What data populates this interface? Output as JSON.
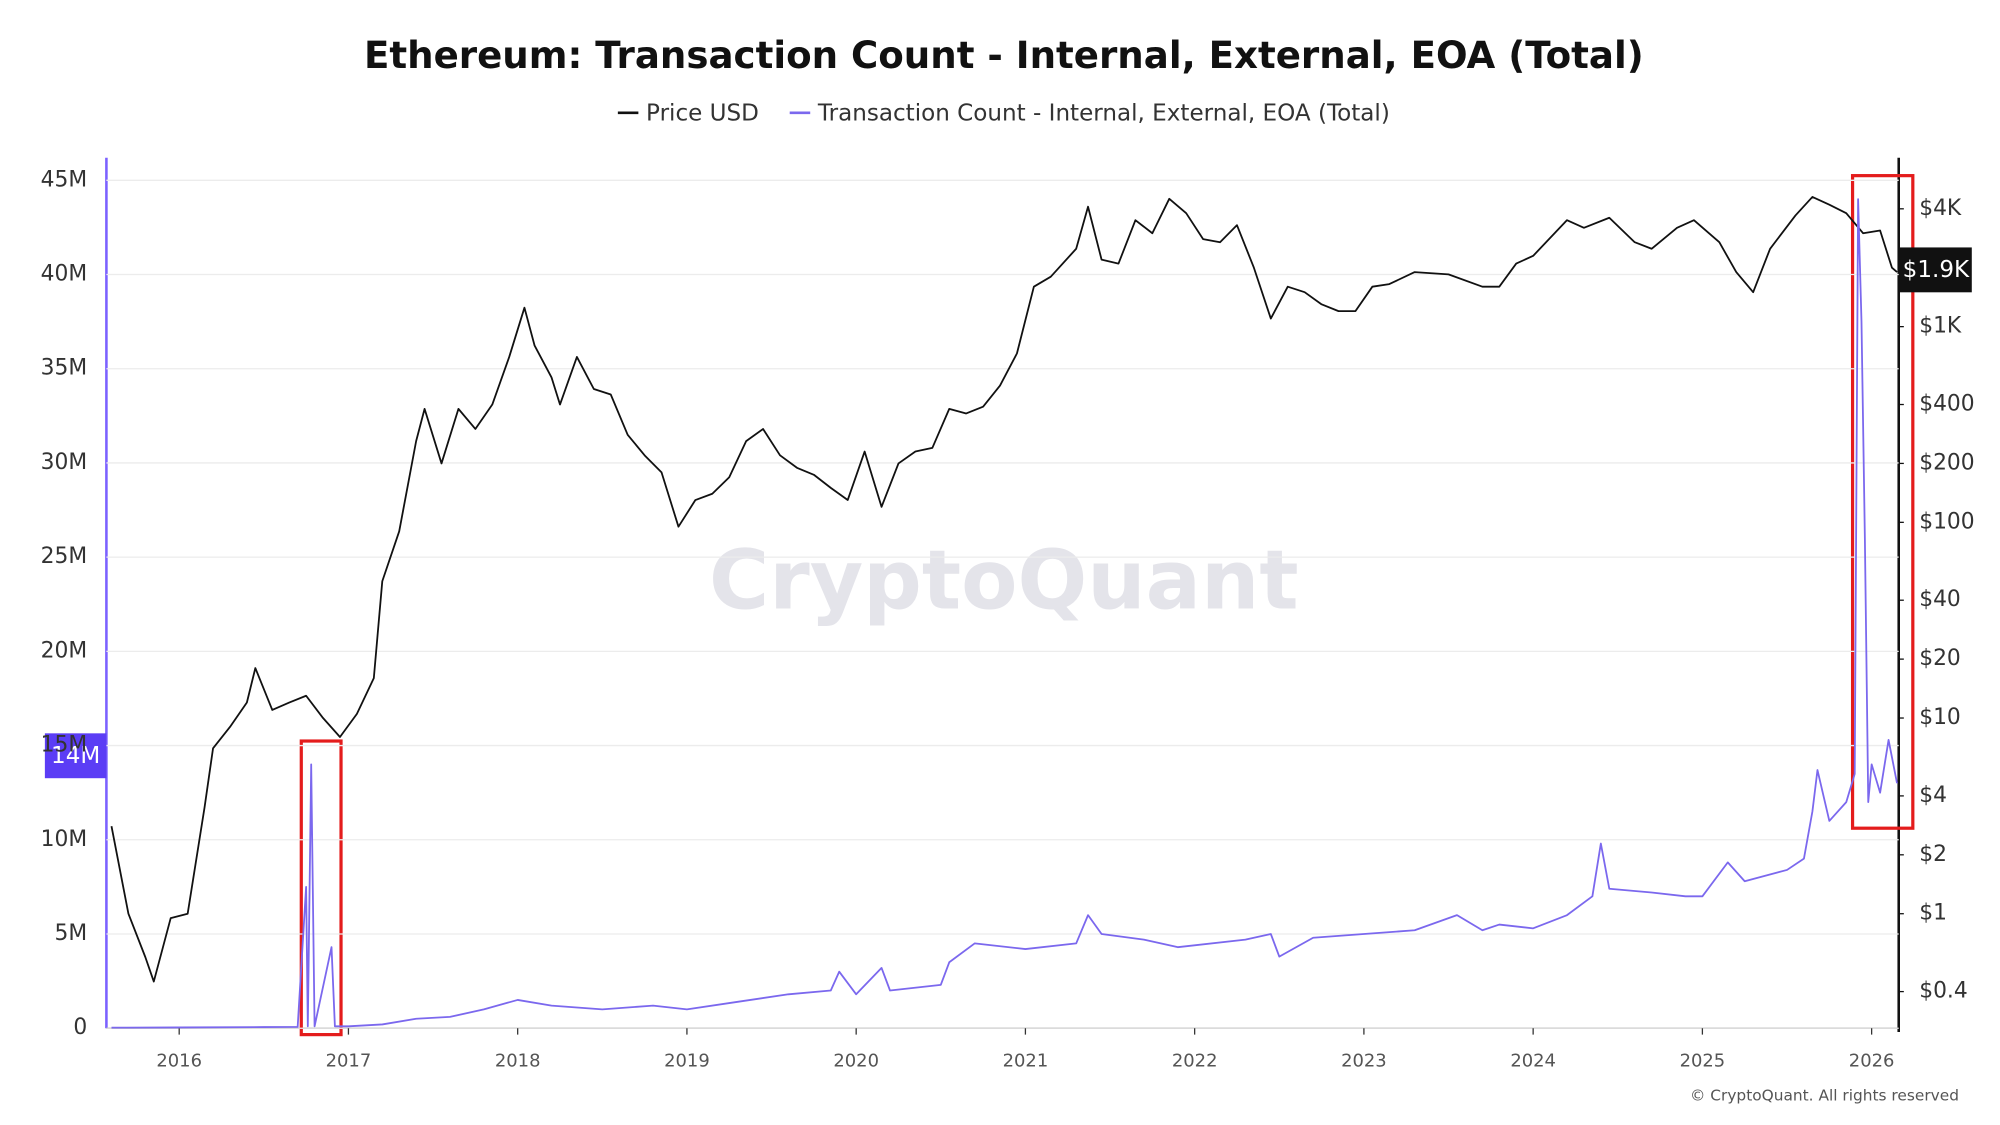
{
  "chart_data": {
    "type": "line",
    "title": "Ethereum: Transaction Count - Internal, External, EOA (Total)",
    "watermark": "CryptoQuant",
    "credit": "© CryptoQuant. All rights reserved",
    "annotations": [
      "14M",
      "$1.9K"
    ],
    "xlim": [
      2015.57,
      2026.16
    ],
    "xticks": [
      2016,
      2017,
      2018,
      2019,
      2020,
      2021,
      2022,
      2023,
      2024,
      2025,
      2026
    ],
    "ylim": [
      0,
      46200000
    ],
    "yticks": [
      0,
      {
        "value": 5000000,
        "label": "5M"
      },
      {
        "value": 10000000,
        "label": "10M"
      },
      {
        "value": 15000000,
        "label": "15M"
      },
      {
        "value": 20000000,
        "label": "20M"
      },
      {
        "value": 25000000,
        "label": "25M"
      },
      {
        "value": 30000000,
        "label": "30M"
      },
      {
        "value": 35000000,
        "label": "35M"
      },
      {
        "value": 40000000,
        "label": "40M"
      },
      {
        "value": 45000000,
        "label": "45M"
      }
    ],
    "y2scale": "log",
    "y2lim": [
      0.26,
      7300
    ],
    "y2ticks": [
      {
        "value": 0.4,
        "label": "$0.4"
      },
      {
        "value": 1,
        "label": "$1"
      },
      {
        "value": 2,
        "label": "$2"
      },
      {
        "value": 4,
        "label": "$4"
      },
      {
        "value": 10,
        "label": "$10"
      },
      {
        "value": 20,
        "label": "$20"
      },
      {
        "value": 40,
        "label": "$40"
      },
      {
        "value": 100,
        "label": "$100"
      },
      {
        "value": 200,
        "label": "$200"
      },
      {
        "value": 400,
        "label": "$400"
      },
      {
        "value": 1000,
        "label": "$1K"
      },
      {
        "value": 4000,
        "label": "$4K"
      }
    ],
    "grid": true,
    "series": [
      {
        "name": "Price USD",
        "color": "#111111",
        "axis": "y2",
        "x": [
          2015.6,
          2015.7,
          2015.8,
          2015.85,
          2015.95,
          2016.05,
          2016.15,
          2016.2,
          2016.3,
          2016.4,
          2016.45,
          2016.55,
          2016.65,
          2016.75,
          2016.85,
          2016.95,
          2017.05,
          2017.15,
          2017.2,
          2017.3,
          2017.4,
          2017.45,
          2017.55,
          2017.65,
          2017.75,
          2017.85,
          2017.95,
          2018.04,
          2018.1,
          2018.2,
          2018.25,
          2018.35,
          2018.45,
          2018.55,
          2018.65,
          2018.75,
          2018.85,
          2018.95,
          2019.05,
          2019.15,
          2019.25,
          2019.35,
          2019.45,
          2019.55,
          2019.65,
          2019.75,
          2019.85,
          2019.95,
          2020.05,
          2020.15,
          2020.25,
          2020.35,
          2020.45,
          2020.55,
          2020.65,
          2020.75,
          2020.85,
          2020.95,
          2021.05,
          2021.15,
          2021.3,
          2021.37,
          2021.45,
          2021.55,
          2021.65,
          2021.75,
          2021.85,
          2021.95,
          2022.05,
          2022.15,
          2022.25,
          2022.35,
          2022.45,
          2022.55,
          2022.65,
          2022.75,
          2022.85,
          2022.95,
          2023.05,
          2023.15,
          2023.3,
          2023.5,
          2023.7,
          2023.8,
          2023.9,
          2024.0,
          2024.2,
          2024.3,
          2024.45,
          2024.6,
          2024.7,
          2024.85,
          2024.95,
          2025.1,
          2025.2,
          2025.3,
          2025.4,
          2025.55,
          2025.65,
          2025.75,
          2025.85,
          2025.95,
          2026.05,
          2026.12,
          2026.15
        ],
        "values": [
          2.8,
          1.0,
          0.6,
          0.45,
          0.95,
          1.0,
          3.5,
          7,
          9,
          12,
          18,
          11,
          12,
          13,
          10,
          8,
          10.5,
          16,
          50,
          90,
          260,
          380,
          200,
          380,
          300,
          400,
          700,
          1250,
          800,
          550,
          400,
          700,
          480,
          450,
          280,
          220,
          180,
          95,
          130,
          140,
          170,
          260,
          300,
          220,
          190,
          175,
          150,
          130,
          230,
          120,
          200,
          230,
          240,
          380,
          360,
          390,
          500,
          730,
          1600,
          1800,
          2500,
          4100,
          2200,
          2100,
          3500,
          3000,
          4500,
          3800,
          2800,
          2700,
          3300,
          2000,
          1100,
          1600,
          1500,
          1300,
          1200,
          1200,
          1600,
          1650,
          1900,
          1850,
          1600,
          1600,
          2100,
          2300,
          3500,
          3200,
          3600,
          2700,
          2500,
          3200,
          3500,
          2700,
          1900,
          1500,
          2500,
          3700,
          4600,
          4200,
          3800,
          3000,
          3100,
          2000,
          1900
        ]
      },
      {
        "name": "Transaction Count - Internal, External, EOA (Total)",
        "color": "#7b68ee",
        "axis": "y",
        "x": [
          2015.6,
          2016.0,
          2016.5,
          2016.7,
          2016.75,
          2016.76,
          2016.78,
          2016.8,
          2016.9,
          2016.92,
          2017.0,
          2017.2,
          2017.4,
          2017.6,
          2017.8,
          2018.0,
          2018.2,
          2018.5,
          2018.8,
          2019.0,
          2019.3,
          2019.6,
          2019.85,
          2019.9,
          2020.0,
          2020.15,
          2020.2,
          2020.5,
          2020.55,
          2020.7,
          2021.0,
          2021.3,
          2021.37,
          2021.45,
          2021.7,
          2021.9,
          2022.3,
          2022.45,
          2022.5,
          2022.7,
          2023.0,
          2023.3,
          2023.55,
          2023.7,
          2023.8,
          2024.0,
          2024.2,
          2024.35,
          2024.4,
          2024.45,
          2024.7,
          2024.9,
          2025.0,
          2025.15,
          2025.25,
          2025.5,
          2025.6,
          2025.65,
          2025.68,
          2025.75,
          2025.85,
          2025.9,
          2025.92,
          2025.94,
          2025.96,
          2025.98,
          2026.0,
          2026.05,
          2026.1,
          2026.15
        ],
        "values": [
          30000,
          40000,
          60000,
          70000,
          7500000,
          100000,
          14000000,
          100000,
          4300000,
          100000,
          100000,
          200000,
          500000,
          600000,
          1000000,
          1500000,
          1200000,
          1000000,
          1200000,
          1000000,
          1400000,
          1800000,
          2000000,
          3000000,
          1800000,
          3200000,
          2000000,
          2300000,
          3500000,
          4500000,
          4200000,
          4500000,
          6000000,
          5000000,
          4700000,
          4300000,
          4700000,
          5000000,
          3800000,
          4800000,
          5000000,
          5200000,
          6000000,
          5200000,
          5500000,
          5300000,
          6000000,
          7000000,
          9800000,
          7400000,
          7200000,
          7000000,
          7000000,
          8800000,
          7800000,
          8400000,
          9000000,
          11500000,
          13700000,
          11000000,
          12000000,
          13500000,
          44000000,
          37500000,
          26000000,
          12000000,
          14000000,
          12500000,
          15300000,
          13000000
        ]
      }
    ]
  }
}
